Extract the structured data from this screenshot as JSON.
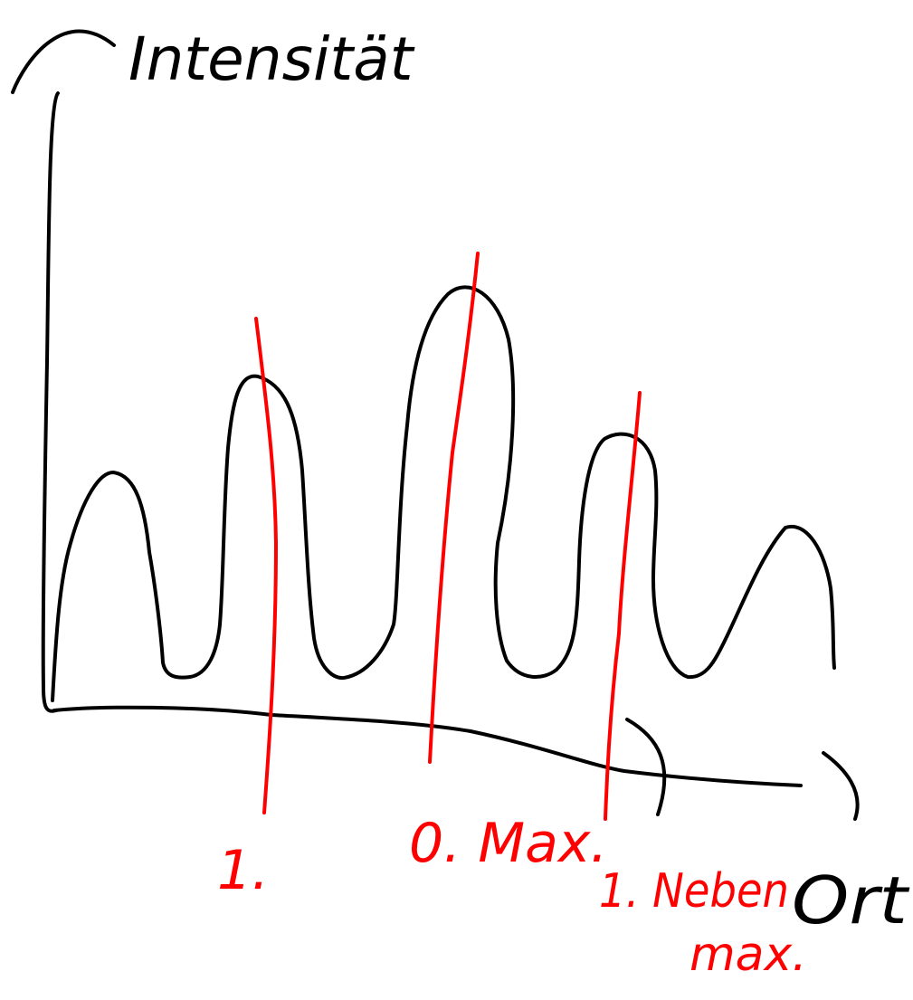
{
  "axes": {
    "y_label": "Intensität",
    "x_label": "Ort"
  },
  "markers": {
    "first_min": "1.",
    "main_max": "0. Max.",
    "side_max_line1": "1. Neben",
    "side_max_line2": "max."
  },
  "colors": {
    "ink": "#000000",
    "annotation": "#ff0000",
    "background": "#ffffff"
  }
}
